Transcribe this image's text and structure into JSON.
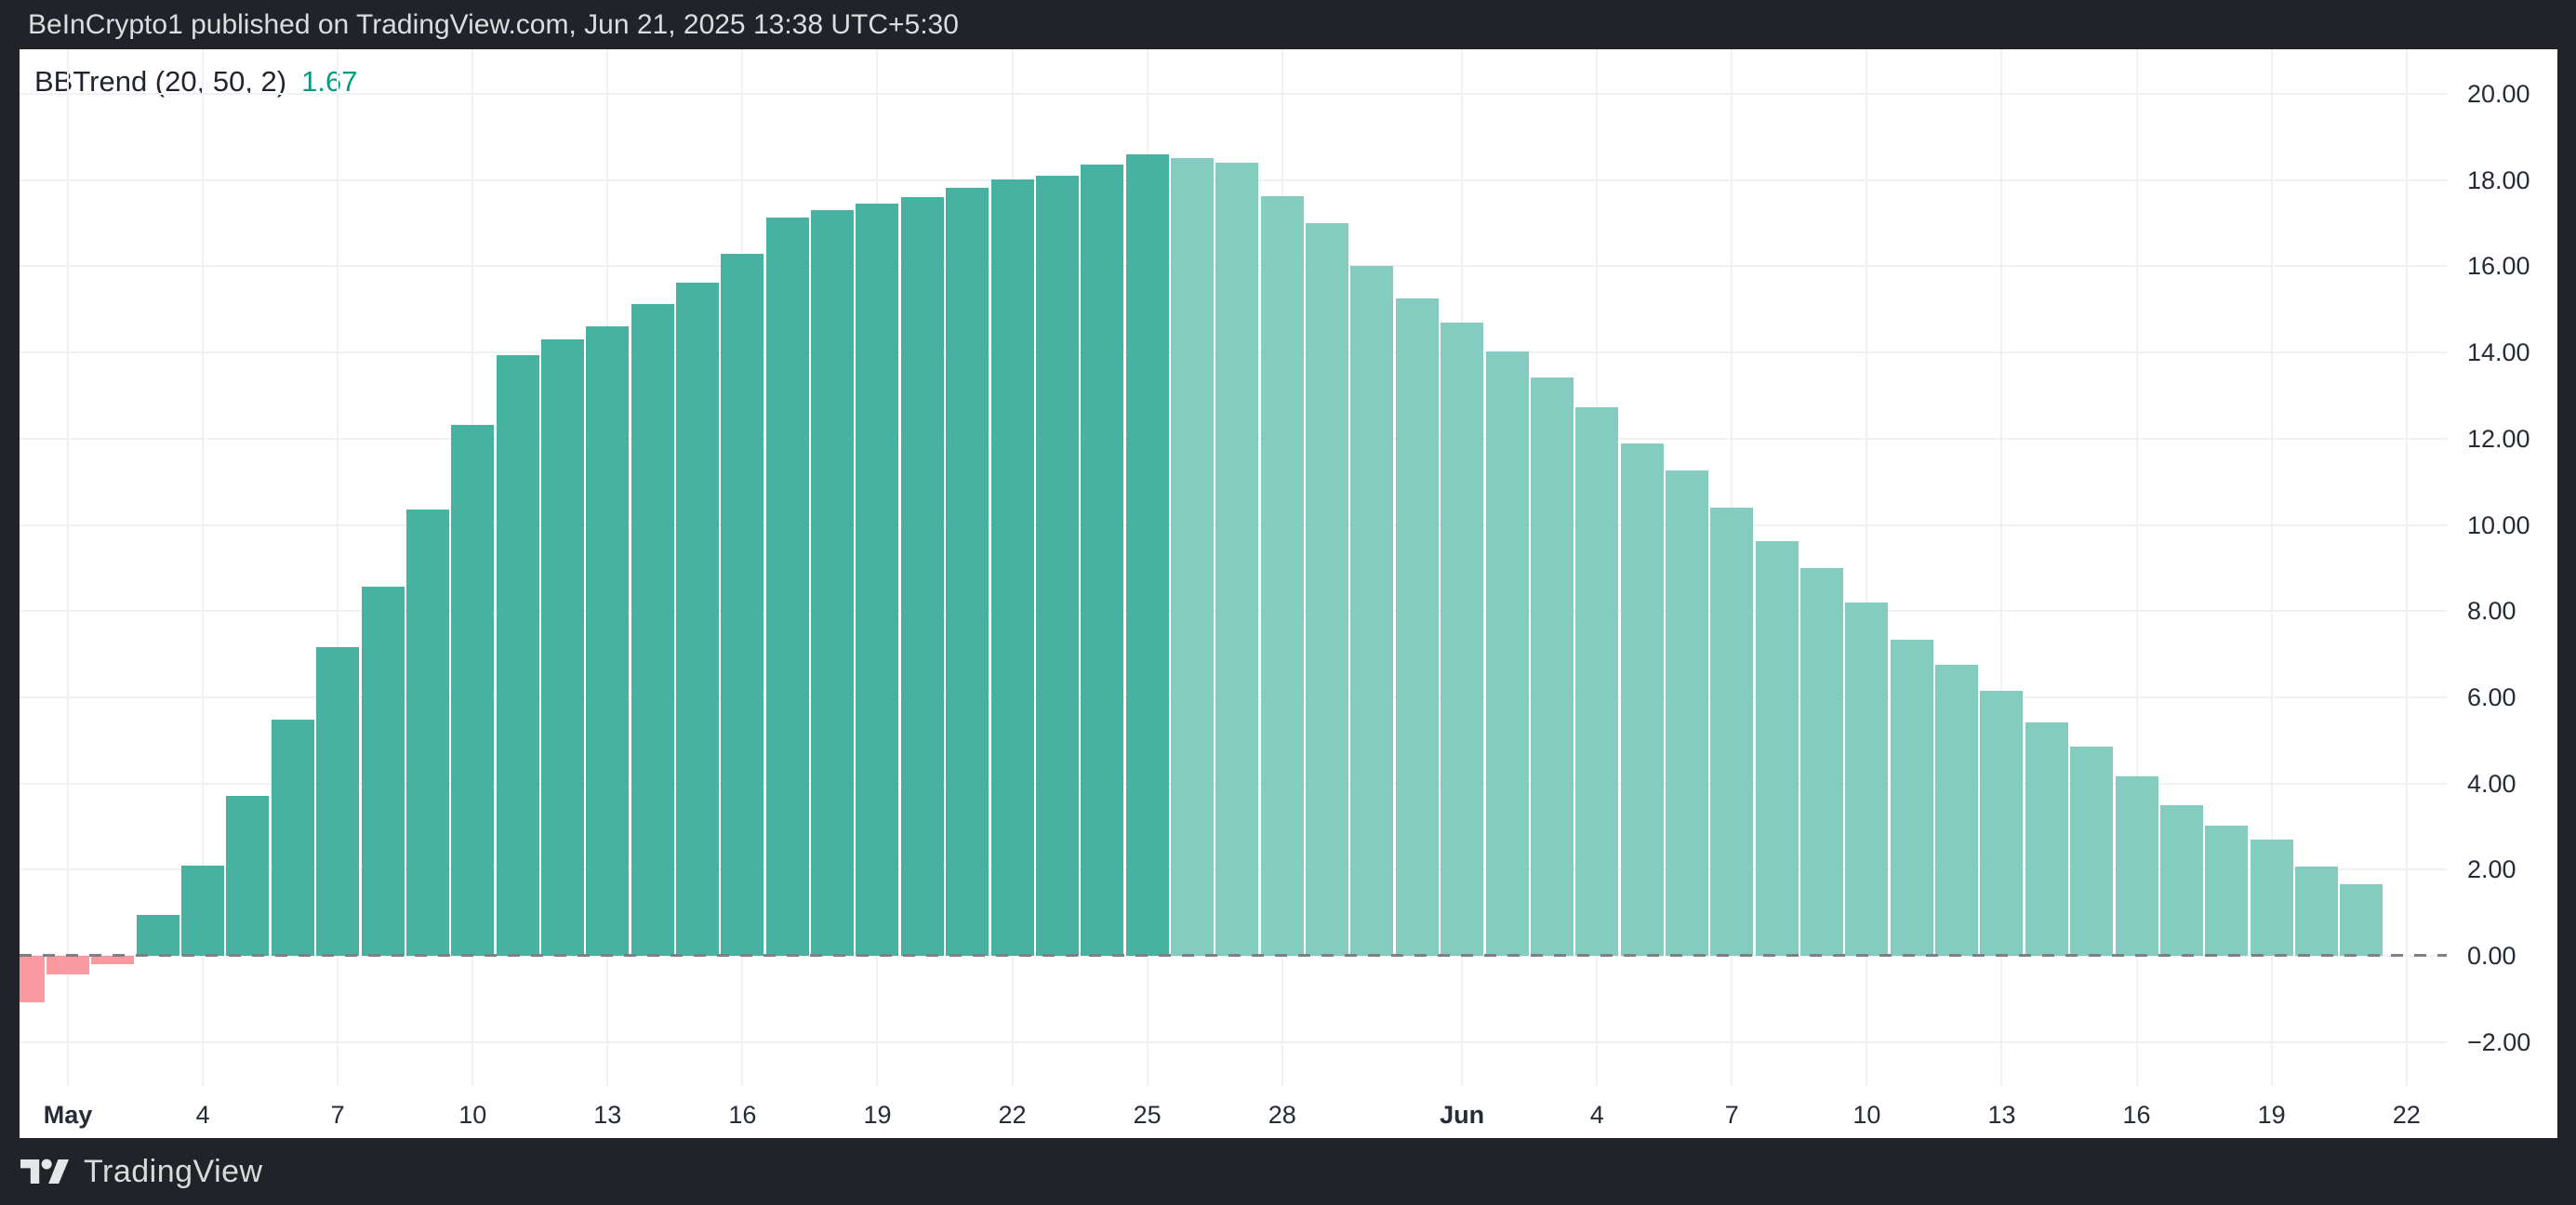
{
  "header": {
    "title": "BeInCrypto1 published on TradingView.com, Jun 21, 2025 13:38 UTC+5:30"
  },
  "indicator": {
    "name": "BBTrend (20, 50, 2)",
    "value": "1.67"
  },
  "footer": {
    "brand": "TradingView"
  },
  "colors": {
    "frame": "#212329",
    "frame_text": "#dcdde0",
    "chart_bg": "#ffffff",
    "grid": "#eff1f4",
    "axis_text": "#262b36",
    "zero_line": "#7e8083",
    "bar_rising": "#48b2a1",
    "bar_falling": "#84ccbf",
    "bar_negative": "#f89a9f",
    "indicator_value_color": "#089981"
  },
  "chart_data": {
    "type": "bar",
    "title": "BBTrend (20, 50, 2)",
    "current_value": 1.67,
    "xlabel": "",
    "ylabel": "",
    "ylim": [
      -3,
      21
    ],
    "grid": true,
    "legend_position": "top-left",
    "zero_line": "dashed",
    "y_tick_values": [
      20,
      18,
      16,
      14,
      12,
      10,
      8,
      6,
      4,
      2,
      0,
      -2
    ],
    "x_ticks": [
      {
        "label": "May",
        "day": 0,
        "bold": true
      },
      {
        "label": "4",
        "day": 3,
        "bold": false
      },
      {
        "label": "7",
        "day": 6,
        "bold": false
      },
      {
        "label": "10",
        "day": 9,
        "bold": false
      },
      {
        "label": "13",
        "day": 12,
        "bold": false
      },
      {
        "label": "16",
        "day": 15,
        "bold": false
      },
      {
        "label": "19",
        "day": 18,
        "bold": false
      },
      {
        "label": "22",
        "day": 21,
        "bold": false
      },
      {
        "label": "25",
        "day": 24,
        "bold": false
      },
      {
        "label": "28",
        "day": 27,
        "bold": false
      },
      {
        "label": "Jun",
        "day": 31,
        "bold": true
      },
      {
        "label": "4",
        "day": 34,
        "bold": false
      },
      {
        "label": "7",
        "day": 37,
        "bold": false
      },
      {
        "label": "10",
        "day": 40,
        "bold": false
      },
      {
        "label": "13",
        "day": 43,
        "bold": false
      },
      {
        "label": "16",
        "day": 46,
        "bold": false
      },
      {
        "label": "19",
        "day": 49,
        "bold": false
      },
      {
        "label": "22",
        "day": 52,
        "bold": false
      }
    ],
    "categories": [
      "Apr 30",
      "May 1",
      "May 2",
      "May 3",
      "May 4",
      "May 5",
      "May 6",
      "May 7",
      "May 8",
      "May 9",
      "May 10",
      "May 11",
      "May 12",
      "May 13",
      "May 14",
      "May 15",
      "May 16",
      "May 17",
      "May 18",
      "May 19",
      "May 20",
      "May 21",
      "May 22",
      "May 23",
      "May 24",
      "May 25",
      "May 26",
      "May 27",
      "May 28",
      "May 29",
      "May 30",
      "May 31",
      "Jun 1",
      "Jun 2",
      "Jun 3",
      "Jun 4",
      "Jun 5",
      "Jun 6",
      "Jun 7",
      "Jun 8",
      "Jun 9",
      "Jun 10",
      "Jun 11",
      "Jun 12",
      "Jun 13",
      "Jun 14",
      "Jun 15",
      "Jun 16",
      "Jun 17",
      "Jun 18",
      "Jun 19",
      "Jun 20",
      "Jun 21"
    ],
    "values": [
      -1.08,
      -0.43,
      -0.2,
      0.95,
      2.09,
      3.71,
      5.48,
      7.16,
      8.57,
      10.36,
      12.32,
      13.94,
      14.3,
      14.61,
      15.12,
      15.62,
      16.28,
      17.13,
      17.3,
      17.45,
      17.61,
      17.82,
      18.02,
      18.1,
      18.36,
      18.6,
      18.51,
      18.4,
      17.62,
      17.0,
      16.01,
      15.25,
      14.7,
      14.02,
      13.42,
      12.73,
      11.89,
      11.26,
      10.4,
      9.62,
      9.0,
      8.2,
      7.33,
      6.75,
      6.15,
      5.42,
      4.85,
      4.16,
      3.5,
      3.02,
      2.7,
      2.08,
      1.67
    ],
    "falling_start_index": 26,
    "bar_color_rule": "value<0 = negative(pink); index<26 = rising(dark teal); index>=26 = falling(light teal)"
  }
}
